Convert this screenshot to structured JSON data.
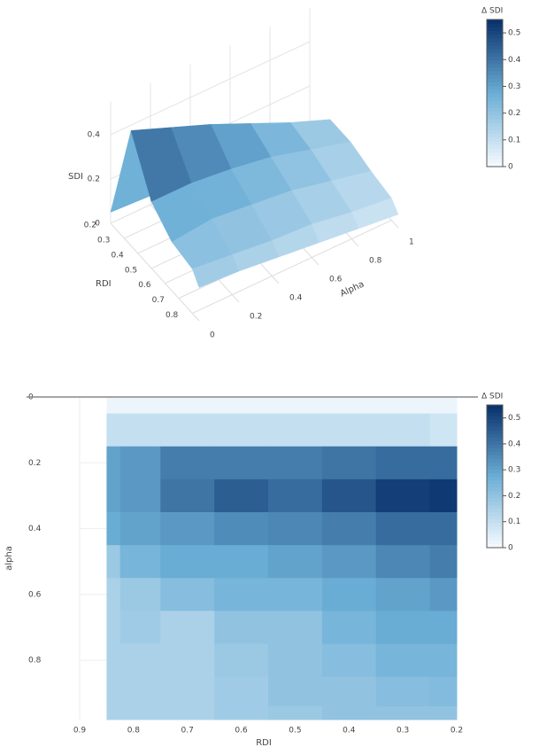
{
  "chart_data": [
    {
      "type": "surface",
      "zlabel": "SDI",
      "xlabel": "RDI",
      "ylabel": "Alpha",
      "colorbar_title": "Δ SDI",
      "colorscale": [
        "#f7fbff",
        "#6baed6",
        "#08306b"
      ],
      "x": [
        0.2,
        0.35,
        0.5,
        0.65,
        0.8,
        0.85
      ],
      "y": [
        0,
        0.2,
        0.4,
        0.6,
        0.8,
        1
      ],
      "z": [
        [
          0.05,
          0.52,
          0.3,
          0.22,
          0.2,
          0.15
        ],
        [
          0.04,
          0.45,
          0.3,
          0.24,
          0.18,
          0.14
        ],
        [
          0.03,
          0.38,
          0.28,
          0.22,
          0.16,
          0.12
        ],
        [
          0.02,
          0.3,
          0.25,
          0.2,
          0.15,
          0.1
        ],
        [
          0.01,
          0.22,
          0.2,
          0.16,
          0.12,
          0.08
        ],
        [
          0,
          0.15,
          0.15,
          0.12,
          0.1,
          0.06
        ]
      ],
      "xlim": [
        0.2,
        0.85
      ],
      "ylim": [
        0,
        1
      ],
      "zlim": [
        0,
        0.55
      ],
      "xticks": [
        0.2,
        0.3,
        0.4,
        0.5,
        0.6,
        0.7,
        0.8
      ],
      "yticks": [
        0,
        0.2,
        0.4,
        0.6,
        0.8,
        1
      ],
      "zticks": [
        0,
        0.2,
        0.4
      ],
      "clim": [
        0,
        0.55
      ],
      "cticks": [
        0,
        0.1,
        0.2,
        0.3,
        0.4,
        0.5
      ]
    },
    {
      "type": "contour",
      "xlabel": "RDI",
      "ylabel": "alpha",
      "colorbar_title": "Δ SDI",
      "colorscale": [
        "#f7fbff",
        "#6baed6",
        "#08306b"
      ],
      "x": [
        0.85,
        0.8,
        0.7,
        0.6,
        0.5,
        0.4,
        0.3,
        0.2
      ],
      "y": [
        0,
        0.1,
        0.2,
        0.3,
        0.4,
        0.5,
        0.6,
        0.7,
        0.8,
        0.9,
        0.98
      ],
      "z": [
        [
          0.02,
          0.02,
          0.02,
          0.02,
          0.02,
          0.02,
          0.02,
          0.02
        ],
        [
          0.1,
          0.1,
          0.1,
          0.1,
          0.1,
          0.1,
          0.1,
          0.08
        ],
        [
          0.3,
          0.32,
          0.38,
          0.38,
          0.38,
          0.4,
          0.42,
          0.42
        ],
        [
          0.3,
          0.32,
          0.4,
          0.45,
          0.42,
          0.47,
          0.52,
          0.53
        ],
        [
          0.28,
          0.3,
          0.32,
          0.35,
          0.36,
          0.38,
          0.42,
          0.42
        ],
        [
          0.18,
          0.25,
          0.28,
          0.28,
          0.3,
          0.32,
          0.36,
          0.38
        ],
        [
          0.15,
          0.18,
          0.22,
          0.25,
          0.25,
          0.28,
          0.3,
          0.32
        ],
        [
          0.15,
          0.17,
          0.15,
          0.2,
          0.2,
          0.25,
          0.28,
          0.28
        ],
        [
          0.15,
          0.15,
          0.15,
          0.18,
          0.2,
          0.22,
          0.25,
          0.25
        ],
        [
          0.15,
          0.15,
          0.15,
          0.17,
          0.2,
          0.2,
          0.22,
          0.23
        ],
        [
          0.15,
          0.15,
          0.15,
          0.17,
          0.18,
          0.2,
          0.2,
          0.2
        ]
      ],
      "xlim": [
        0.9,
        0.2
      ],
      "ylim": [
        0,
        0.98
      ],
      "xticks": [
        0.9,
        0.8,
        0.7,
        0.6,
        0.5,
        0.4,
        0.3,
        0.2
      ],
      "yticks": [
        0,
        0.2,
        0.4,
        0.6,
        0.8
      ],
      "grid": true,
      "clim": [
        0,
        0.55
      ],
      "cticks": [
        0,
        0.1,
        0.2,
        0.3,
        0.4,
        0.5
      ]
    }
  ]
}
